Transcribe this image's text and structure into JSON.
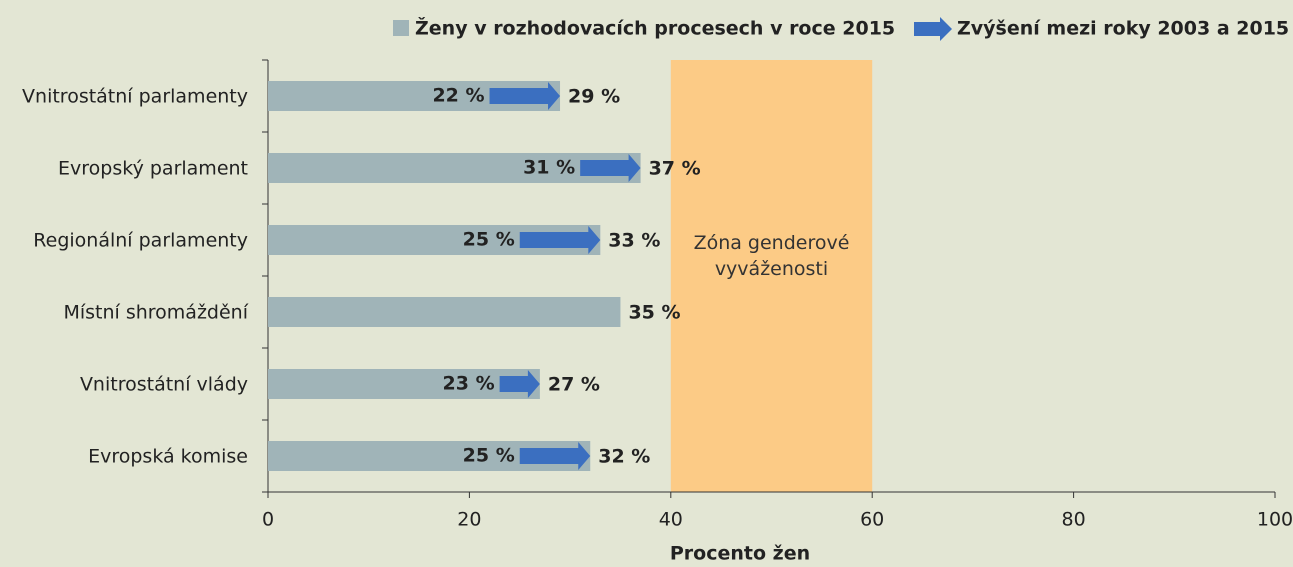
{
  "chart_data": {
    "type": "bar_arrow",
    "categories": [
      "Vnitrostátní parlamenty",
      "Evropský parlament",
      "Regionální parlamenty",
      "Místní shromáždění",
      "Vnitrostátní vlády",
      "Evropská komise"
    ],
    "series": [
      {
        "name": "Ženy v rozhodovacích procesech v roce 2015",
        "color": "#a0b4b8",
        "values": [
          29,
          37,
          33,
          35,
          27,
          32
        ],
        "value_labels": [
          "29 %",
          "37 %",
          "33 %",
          "35 %",
          "27 %",
          "32 %"
        ]
      },
      {
        "name": "Zvýšení mezi roky 2003 a 2015",
        "color": "#3b6fc0",
        "values": [
          22,
          31,
          25,
          null,
          23,
          25
        ],
        "value_labels": [
          "22 %",
          "31 %",
          "25 %",
          null,
          "23 %",
          "25 %"
        ]
      }
    ],
    "xlim": [
      0,
      100
    ],
    "xticks": [
      0,
      20,
      40,
      60,
      80,
      100
    ],
    "xlabel": "Procento žen",
    "zone": {
      "label": "Zóna genderové vyváženosti",
      "range": [
        40,
        60
      ],
      "color": "#fccb86"
    }
  }
}
